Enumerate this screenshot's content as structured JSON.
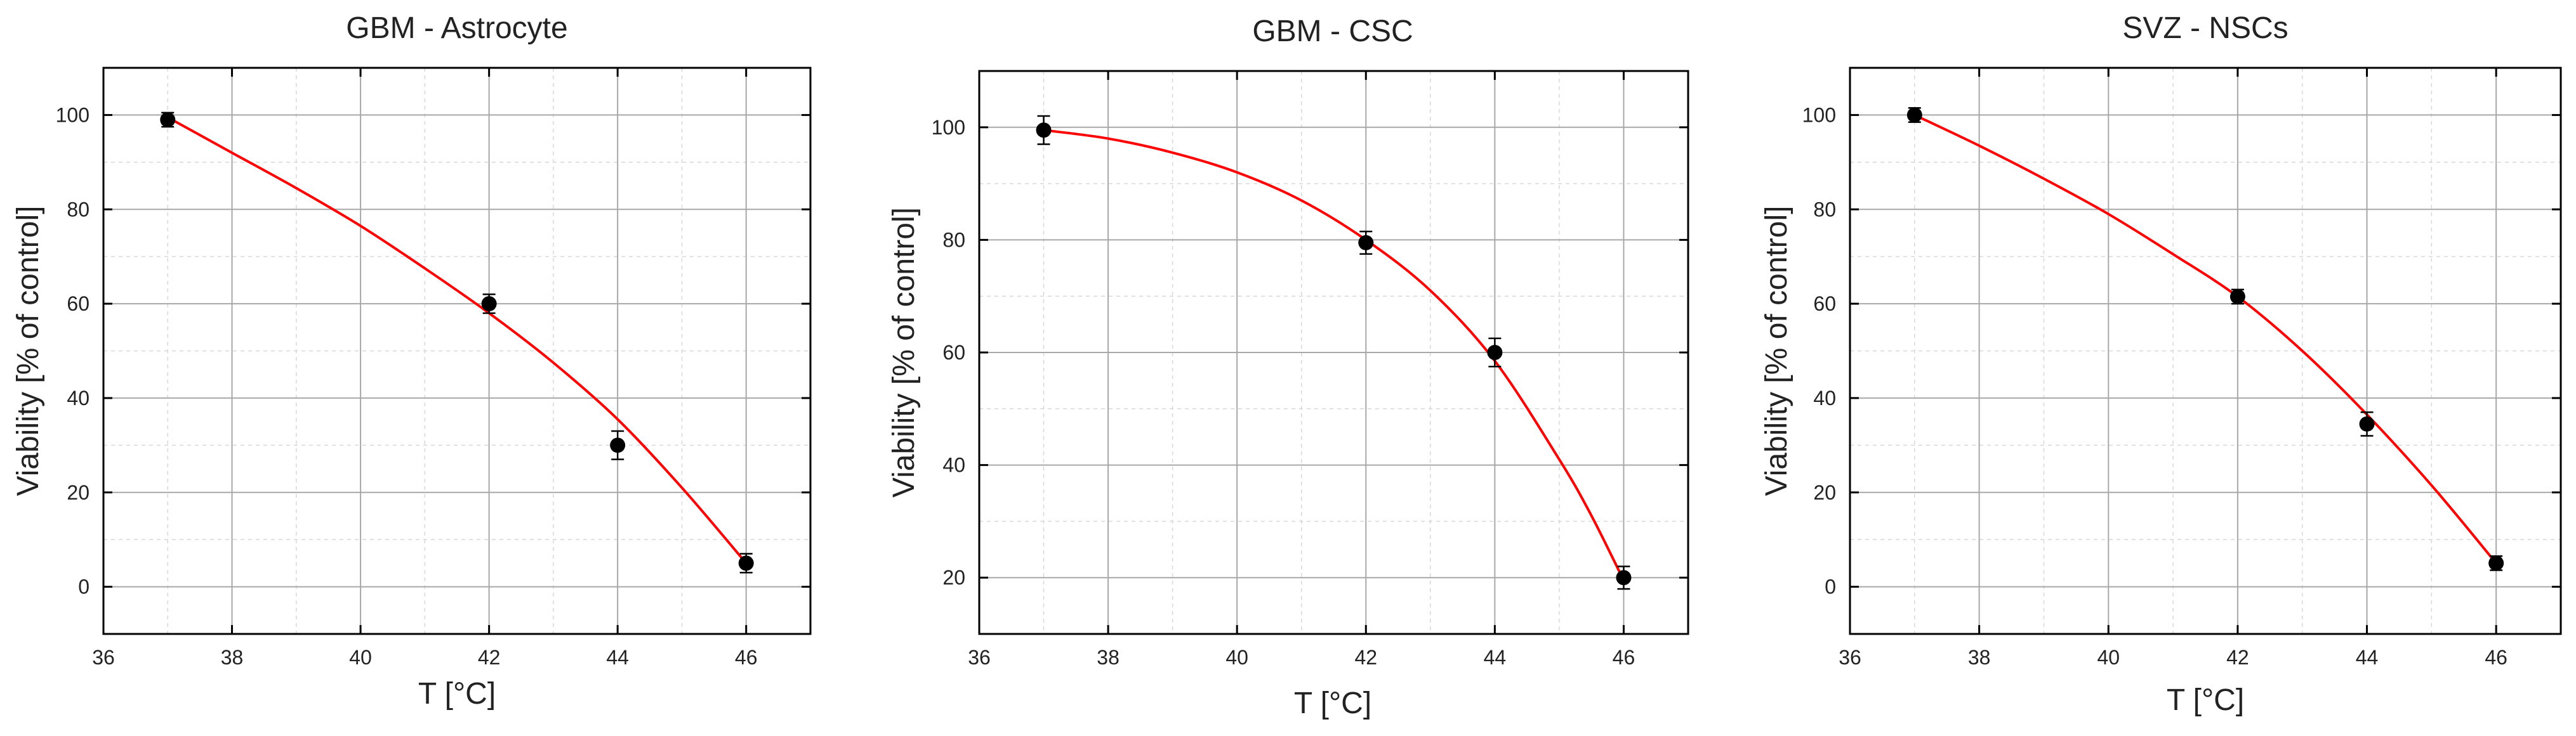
{
  "chart_data": [
    {
      "type": "scatter",
      "title": "GBM - Astrocyte",
      "xlabel": "T [°C]",
      "ylabel": "Viability [% of control]",
      "xlim": [
        36,
        47
      ],
      "ylim": [
        -10,
        110
      ],
      "x_ticks": [
        36,
        38,
        40,
        42,
        44,
        46
      ],
      "y_ticks": [
        0,
        20,
        40,
        60,
        80,
        100
      ],
      "grid": true,
      "fit_color": "#ff0000",
      "points": [
        {
          "x": 37,
          "y": 99,
          "err": 1.5
        },
        {
          "x": 42,
          "y": 60,
          "err": 2
        },
        {
          "x": 44,
          "y": 30,
          "err": 3
        },
        {
          "x": 46,
          "y": 5,
          "err": 2
        }
      ],
      "fit": {
        "x": [
          37,
          38,
          39,
          40,
          41,
          42,
          43,
          44,
          45,
          46
        ],
        "y": [
          99.5,
          92,
          84.5,
          76.5,
          67.5,
          58,
          47.5,
          35.5,
          21,
          5
        ]
      }
    },
    {
      "type": "scatter",
      "title": "GBM - CSC",
      "xlabel": "T [°C]",
      "ylabel": "Viability [% of control]",
      "xlim": [
        36,
        47
      ],
      "ylim": [
        10,
        110
      ],
      "x_ticks": [
        36,
        38,
        40,
        42,
        44,
        46
      ],
      "y_ticks": [
        20,
        40,
        60,
        80,
        100
      ],
      "grid": true,
      "fit_color": "#ff0000",
      "points": [
        {
          "x": 37,
          "y": 99.5,
          "err": 2.5
        },
        {
          "x": 42,
          "y": 79.5,
          "err": 2
        },
        {
          "x": 44,
          "y": 60,
          "err": 2.5
        },
        {
          "x": 46,
          "y": 20,
          "err": 2
        }
      ],
      "fit": {
        "x": [
          37,
          38,
          39,
          40,
          41,
          42,
          43,
          44,
          45,
          45.5,
          46
        ],
        "y": [
          99.5,
          98,
          95.5,
          92,
          87,
          80,
          71,
          58.5,
          41,
          31,
          19.5
        ]
      }
    },
    {
      "type": "scatter",
      "title": "SVZ - NSCs",
      "xlabel": "T [°C]",
      "ylabel": "Viability [% of control]",
      "xlim": [
        36,
        47
      ],
      "ylim": [
        -10,
        110
      ],
      "x_ticks": [
        36,
        38,
        40,
        42,
        44,
        46
      ],
      "y_ticks": [
        0,
        20,
        40,
        60,
        80,
        100
      ],
      "grid": true,
      "fit_color": "#ff0000",
      "points": [
        {
          "x": 37,
          "y": 100,
          "err": 1.5
        },
        {
          "x": 42,
          "y": 61.5,
          "err": 1.5
        },
        {
          "x": 44,
          "y": 34.5,
          "err": 2.5
        },
        {
          "x": 46,
          "y": 5,
          "err": 1.5
        }
      ],
      "fit": {
        "x": [
          37,
          38,
          39,
          40,
          41,
          42,
          43,
          44,
          45,
          46
        ],
        "y": [
          100,
          93.5,
          86.5,
          79,
          70.5,
          61.5,
          50,
          36.5,
          21.5,
          5
        ]
      }
    }
  ]
}
